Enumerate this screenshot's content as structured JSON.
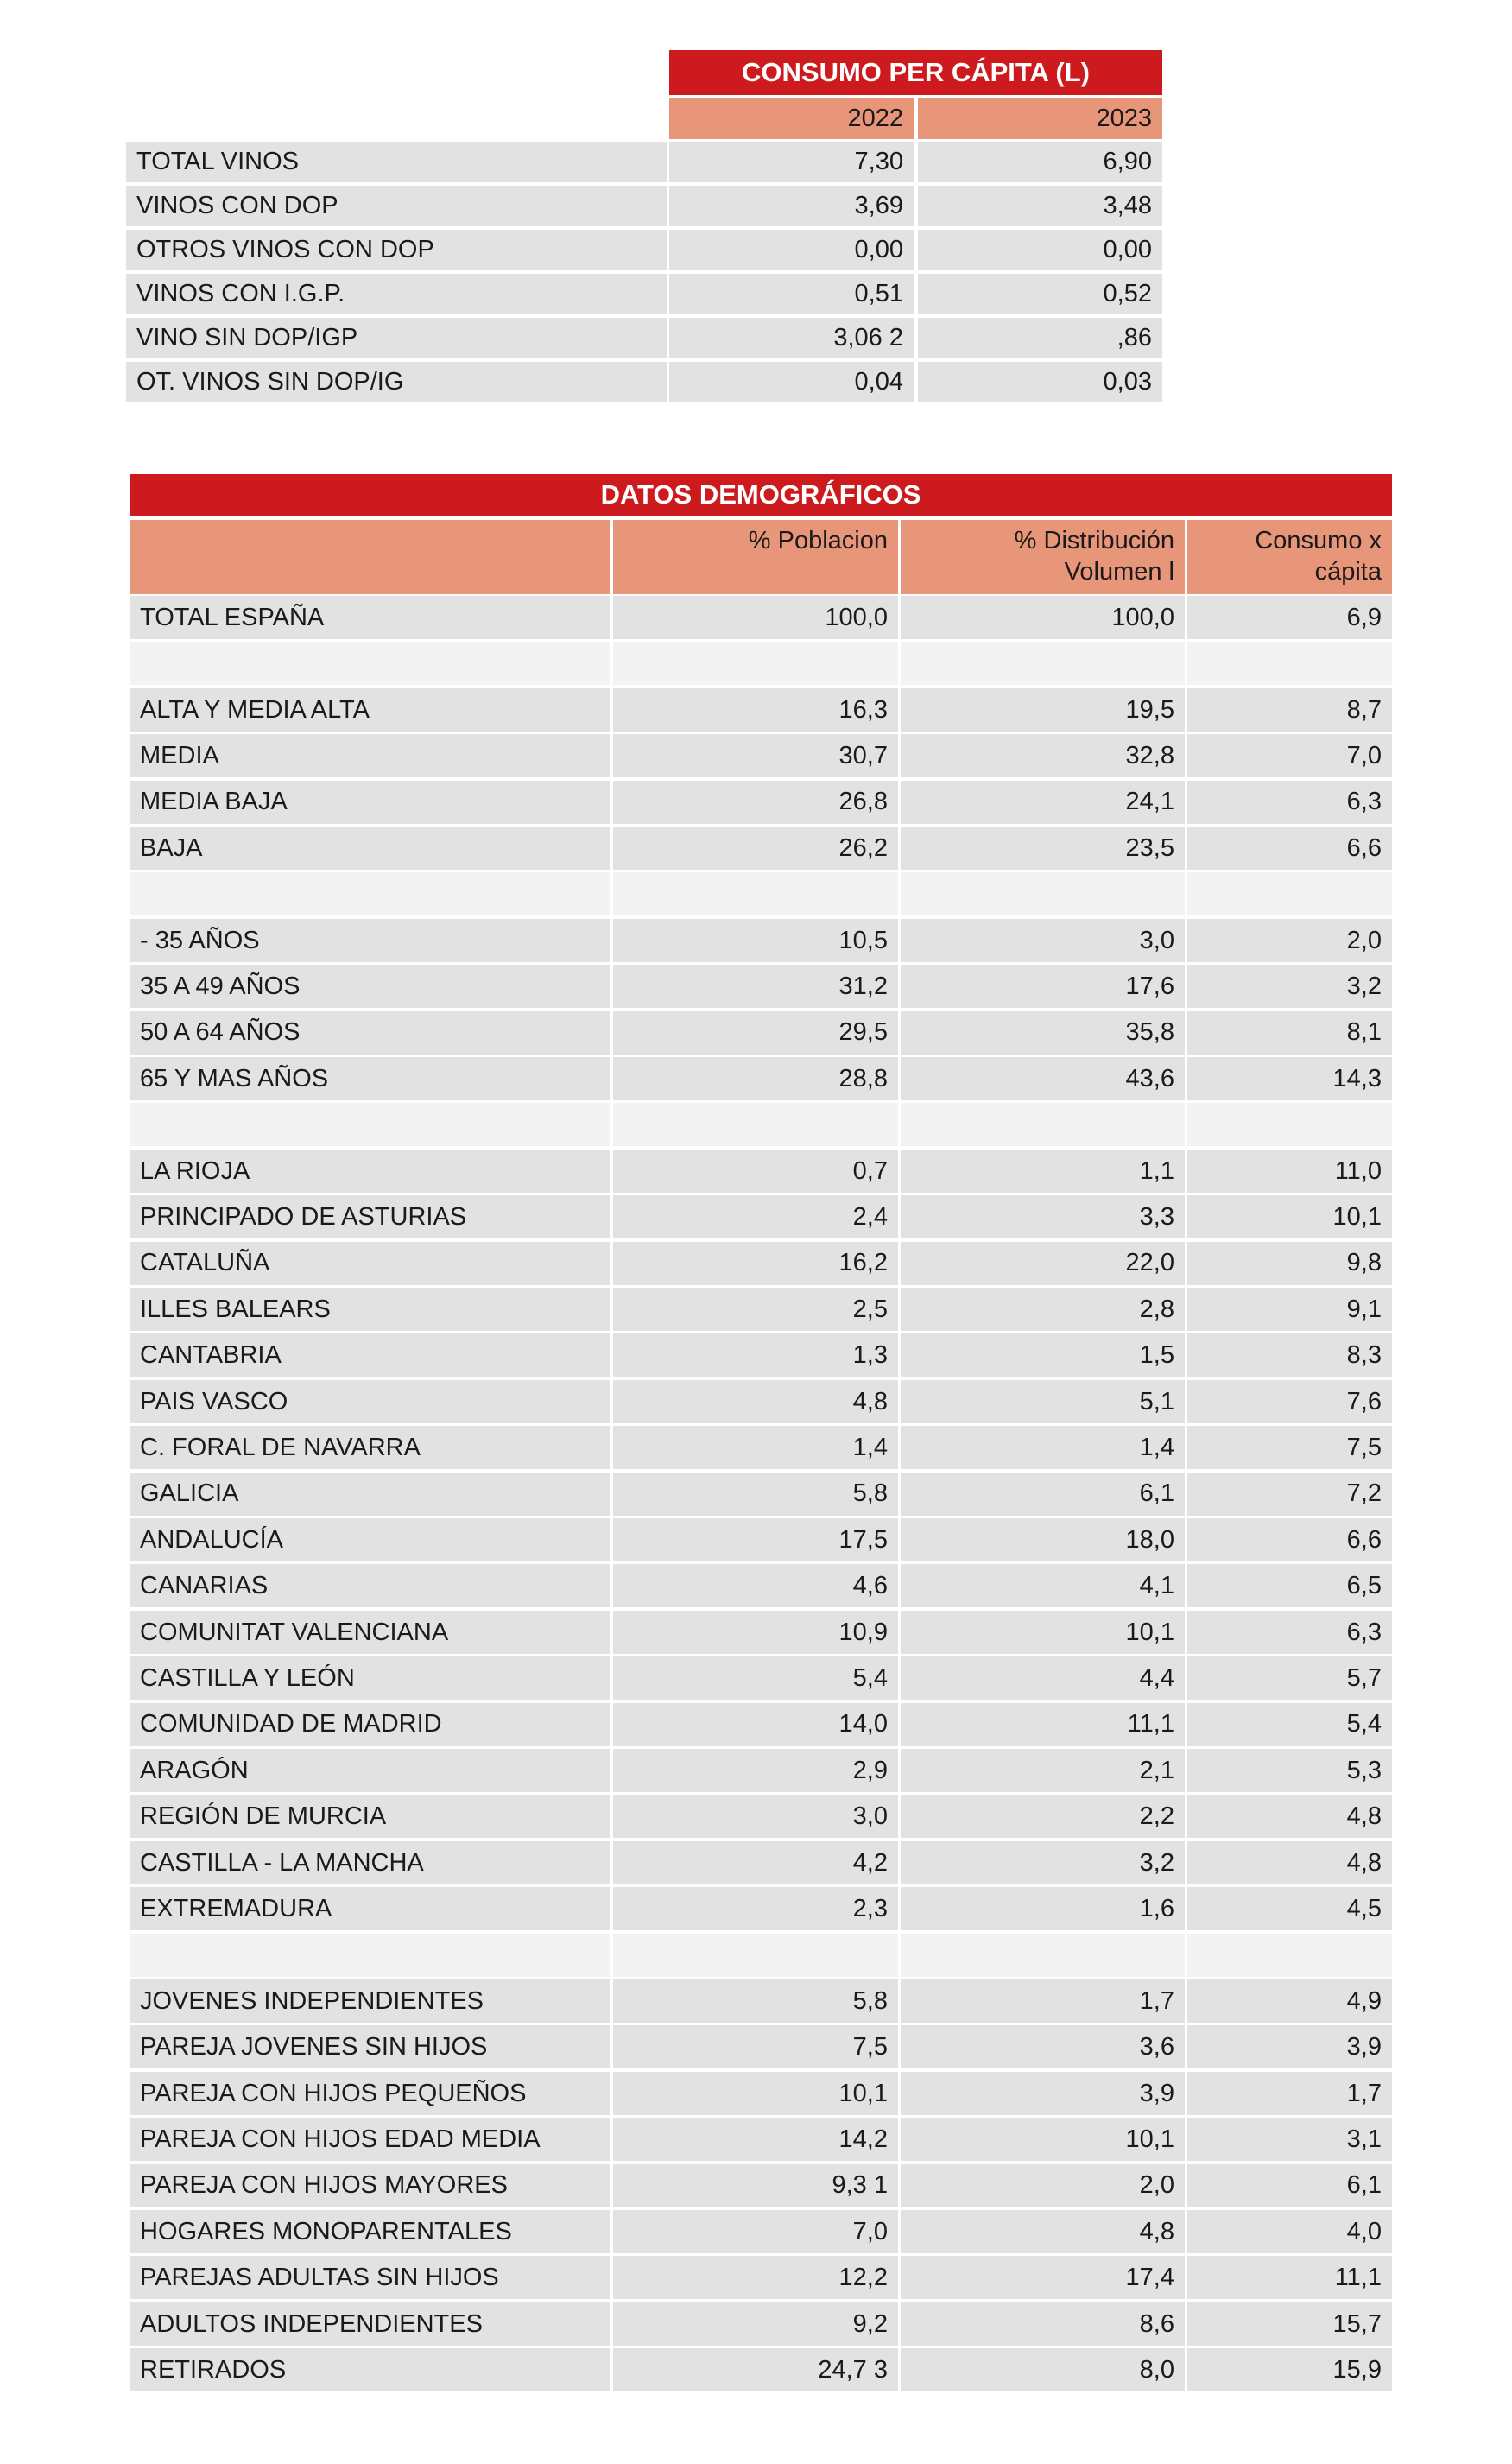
{
  "table1": {
    "title": "CONSUMO PER CÁPITA (L)",
    "columns": [
      "2022",
      "2023"
    ],
    "rows": [
      [
        "TOTAL VINOS",
        "7,30",
        "6,90"
      ],
      [
        "VINOS CON DOP",
        "3,69",
        "3,48"
      ],
      [
        "OTROS VINOS CON DOP",
        "0,00",
        "0,00"
      ],
      [
        "VINOS CON I.G.P.",
        "0,51",
        "0,52"
      ],
      [
        "VINO SIN DOP/IGP",
        "3,06 2",
        ",86"
      ],
      [
        "OT. VINOS SIN DOP/IG",
        "0,04",
        "0,03"
      ]
    ]
  },
  "table2": {
    "title": "DATOS DEMOGRÁFICOS",
    "columns": [
      "% Poblacion",
      "% Distribución Volumen l",
      "Consumo x cápita"
    ],
    "rows": [
      [
        "TOTAL ESPAÑA",
        "100,0",
        "100,0",
        "6,9"
      ],
      null,
      [
        "ALTA Y MEDIA ALTA",
        "16,3",
        "19,5",
        "8,7"
      ],
      [
        "MEDIA",
        "30,7",
        "32,8",
        "7,0"
      ],
      [
        "MEDIA BAJA",
        "26,8",
        "24,1",
        "6,3"
      ],
      [
        "BAJA",
        "26,2",
        "23,5",
        "6,6"
      ],
      null,
      [
        "- 35 AÑOS",
        "10,5",
        "3,0",
        "2,0"
      ],
      [
        "35 A 49 AÑOS",
        "31,2",
        "17,6",
        "3,2"
      ],
      [
        "50 A 64 AÑOS",
        "29,5",
        "35,8",
        "8,1"
      ],
      [
        "65 Y MAS AÑOS",
        "28,8",
        "43,6",
        "14,3"
      ],
      null,
      [
        "LA RIOJA",
        "0,7",
        "1,1",
        "11,0"
      ],
      [
        "PRINCIPADO DE ASTURIAS",
        "2,4",
        "3,3",
        "10,1"
      ],
      [
        "CATALUÑA",
        "16,2",
        "22,0",
        "9,8"
      ],
      [
        "ILLES BALEARS",
        "2,5",
        "2,8",
        "9,1"
      ],
      [
        "CANTABRIA",
        "1,3",
        "1,5",
        "8,3"
      ],
      [
        "PAIS VASCO",
        "4,8",
        "5,1",
        "7,6"
      ],
      [
        "C. FORAL DE NAVARRA",
        "1,4",
        "1,4",
        "7,5"
      ],
      [
        "GALICIA",
        "5,8",
        "6,1",
        "7,2"
      ],
      [
        "ANDALUCÍA",
        "17,5",
        "18,0",
        "6,6"
      ],
      [
        "CANARIAS",
        "4,6",
        "4,1",
        "6,5"
      ],
      [
        "COMUNITAT VALENCIANA",
        "10,9",
        "10,1",
        "6,3"
      ],
      [
        "CASTILLA Y LEÓN",
        "5,4",
        "4,4",
        "5,7"
      ],
      [
        "COMUNIDAD DE MADRID",
        "14,0",
        "11,1",
        "5,4"
      ],
      [
        "ARAGÓN",
        "2,9",
        "2,1",
        "5,3"
      ],
      [
        "REGIÓN DE MURCIA",
        "3,0",
        "2,2",
        "4,8"
      ],
      [
        "CASTILLA - LA MANCHA",
        "4,2",
        "3,2",
        "4,8"
      ],
      [
        "EXTREMADURA",
        "2,3",
        "1,6",
        "4,5"
      ],
      null,
      [
        "JOVENES INDEPENDIENTES",
        "5,8",
        "1,7",
        "4,9"
      ],
      [
        "PAREJA JOVENES SIN HIJOS",
        "7,5",
        "3,6",
        "3,9"
      ],
      [
        "PAREJA CON HIJOS PEQUEÑOS",
        "10,1",
        "3,9",
        "1,7"
      ],
      [
        "PAREJA CON HIJOS EDAD MEDIA",
        "14,2",
        "10,1",
        "3,1"
      ],
      [
        "PAREJA CON HIJOS MAYORES",
        "9,3 1",
        "2,0",
        "6,1"
      ],
      [
        "HOGARES MONOPARENTALES",
        "7,0",
        "4,8",
        "4,0"
      ],
      [
        "PAREJAS ADULTAS SIN HIJOS",
        "12,2",
        "17,4",
        "11,1"
      ],
      [
        "ADULTOS INDEPENDIENTES",
        "9,2",
        "8,6",
        "15,7"
      ],
      [
        "RETIRADOS",
        "24,7 3",
        "8,0",
        "15,9"
      ]
    ]
  }
}
